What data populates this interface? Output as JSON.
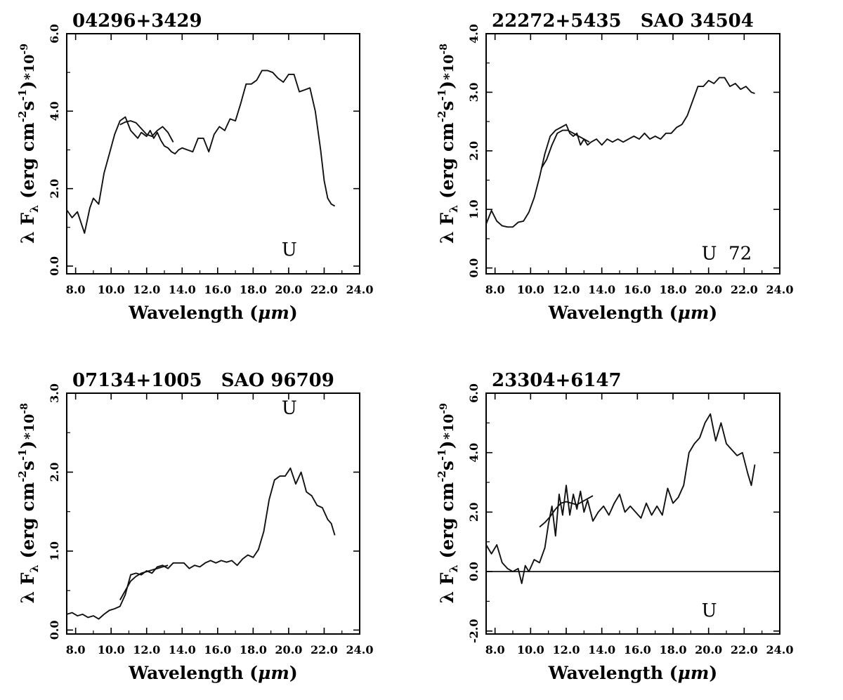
{
  "chart_data": [
    {
      "type": "line",
      "title": "04296+3429",
      "xlabel_pre": "Wavelength (",
      "xlabel_mu": "μm",
      "xlabel_post": ")",
      "ylabel_pre": "λ F",
      "ylabel_sub": "λ",
      "ylabel_mid": " (erg cm",
      "ylabel_exp1": "-2",
      "ylabel_mid2": "s",
      "ylabel_exp2": "-1",
      "ylabel_post": ")",
      "scale_base": "*10",
      "scale_exp": "-9",
      "xlim": [
        7.5,
        24.0
      ],
      "ylim": [
        -0.2,
        6.0
      ],
      "xticks": [
        "8.0",
        "10.0",
        "12.0",
        "14.0",
        "16.0",
        "18.0",
        "20.0",
        "22.0",
        "24.0"
      ],
      "yticks": [
        "0.0",
        "2.0",
        "4.0",
        "6.0"
      ],
      "marker": {
        "text": "U",
        "x": 20.0,
        "y": 0.2
      },
      "zero_line": false,
      "series": [
        {
          "x": [
            7.5,
            7.8,
            8.1,
            8.5,
            8.8,
            9.0,
            9.3,
            9.6,
            9.9,
            10.2,
            10.5,
            10.8,
            11.1,
            11.4,
            11.5,
            11.7,
            12.0,
            12.2,
            12.4,
            12.6,
            12.8,
            13.0,
            13.2,
            13.4,
            13.6,
            13.8,
            14.0,
            14.3,
            14.6,
            14.9,
            15.2,
            15.5,
            15.8,
            16.1,
            16.4,
            16.7,
            17.0,
            17.3,
            17.6,
            17.9,
            18.2,
            18.5,
            18.8,
            19.1,
            19.4,
            19.7,
            20.0,
            20.3,
            20.6,
            20.9,
            21.2,
            21.5,
            21.8,
            22.0,
            22.2,
            22.4,
            22.6
          ],
          "y": [
            1.45,
            1.25,
            1.4,
            0.85,
            1.5,
            1.75,
            1.6,
            2.4,
            2.9,
            3.4,
            3.75,
            3.85,
            3.5,
            3.35,
            3.3,
            3.45,
            3.35,
            3.5,
            3.3,
            3.45,
            3.25,
            3.1,
            3.05,
            2.95,
            2.9,
            3.0,
            3.05,
            3.0,
            2.95,
            3.3,
            3.3,
            2.95,
            3.4,
            3.6,
            3.5,
            3.8,
            3.75,
            4.2,
            4.7,
            4.7,
            4.8,
            5.05,
            5.05,
            5.0,
            4.85,
            4.75,
            4.95,
            4.95,
            4.5,
            4.55,
            4.6,
            4.0,
            3.0,
            2.2,
            1.75,
            1.6,
            1.55
          ]
        },
        {
          "x": [
            10.5,
            10.8,
            11.1,
            11.4,
            11.7,
            12.0,
            12.3,
            12.6,
            12.9,
            13.2,
            13.5
          ],
          "y": [
            3.65,
            3.72,
            3.75,
            3.7,
            3.55,
            3.4,
            3.35,
            3.5,
            3.6,
            3.45,
            3.2
          ]
        }
      ]
    },
    {
      "type": "line",
      "title": "22272+5435   SAO 34504",
      "xlabel_pre": "Wavelength (",
      "xlabel_mu": "μm",
      "xlabel_post": ")",
      "ylabel_pre": "λ F",
      "ylabel_sub": "λ",
      "ylabel_mid": " (erg cm",
      "ylabel_exp1": "-2",
      "ylabel_mid2": "s",
      "ylabel_exp2": "-1",
      "ylabel_post": ")",
      "scale_base": "*10",
      "scale_exp": "-8",
      "xlim": [
        7.5,
        24.0
      ],
      "ylim": [
        -0.1,
        4.0
      ],
      "xticks": [
        "8.0",
        "10.0",
        "12.0",
        "14.0",
        "16.0",
        "18.0",
        "20.0",
        "22.0",
        "24.0"
      ],
      "yticks": [
        "0.0",
        "1.0",
        "2.0",
        "3.0",
        "4.0"
      ],
      "marker": {
        "text": "U  72",
        "x": 20.0,
        "y": 0.1
      },
      "zero_line": false,
      "series": [
        {
          "x": [
            7.5,
            7.8,
            8.1,
            8.4,
            8.7,
            9.0,
            9.3,
            9.6,
            9.9,
            10.2,
            10.5,
            10.8,
            11.1,
            11.4,
            11.7,
            12.0,
            12.2,
            12.4,
            12.6,
            12.8,
            13.0,
            13.2,
            13.4,
            13.7,
            14.0,
            14.3,
            14.6,
            14.9,
            15.2,
            15.5,
            15.8,
            16.1,
            16.4,
            16.7,
            17.0,
            17.3,
            17.6,
            17.9,
            18.2,
            18.5,
            18.8,
            19.1,
            19.4,
            19.7,
            20.0,
            20.3,
            20.6,
            20.9,
            21.2,
            21.5,
            21.8,
            22.1,
            22.4,
            22.6
          ],
          "y": [
            0.75,
            0.98,
            0.8,
            0.72,
            0.7,
            0.7,
            0.78,
            0.8,
            0.95,
            1.2,
            1.55,
            1.95,
            2.25,
            2.35,
            2.4,
            2.45,
            2.3,
            2.25,
            2.3,
            2.1,
            2.2,
            2.1,
            2.15,
            2.2,
            2.1,
            2.2,
            2.15,
            2.2,
            2.15,
            2.2,
            2.25,
            2.2,
            2.3,
            2.2,
            2.25,
            2.2,
            2.3,
            2.3,
            2.4,
            2.45,
            2.6,
            2.85,
            3.1,
            3.1,
            3.2,
            3.15,
            3.25,
            3.25,
            3.1,
            3.15,
            3.05,
            3.1,
            3.0,
            2.98
          ]
        },
        {
          "x": [
            10.6,
            10.9,
            11.2,
            11.5,
            11.8,
            12.1,
            12.4,
            12.7,
            13.0,
            13.3
          ],
          "y": [
            1.7,
            1.85,
            2.1,
            2.3,
            2.35,
            2.35,
            2.3,
            2.25,
            2.2,
            2.15
          ]
        }
      ]
    },
    {
      "type": "line",
      "title": "07134+1005   SAO 96709",
      "xlabel_pre": "Wavelength (",
      "xlabel_mu": "μm",
      "xlabel_post": ")",
      "ylabel_pre": "λ F",
      "ylabel_sub": "λ",
      "ylabel_mid": " (erg cm",
      "ylabel_exp1": "-2",
      "ylabel_mid2": "s",
      "ylabel_exp2": "-1",
      "ylabel_post": ")",
      "scale_base": "*10",
      "scale_exp": "-8",
      "xlim": [
        7.5,
        24.0
      ],
      "ylim": [
        -0.05,
        3.0
      ],
      "xticks": [
        "8.0",
        "10.0",
        "12.0",
        "14.0",
        "16.0",
        "18.0",
        "20.0",
        "22.0",
        "24.0"
      ],
      "yticks": [
        "0.0",
        "1.0",
        "2.0",
        "3.0"
      ],
      "marker": {
        "text": "U",
        "x": 20.0,
        "y": 2.7
      },
      "zero_line": false,
      "series": [
        {
          "x": [
            7.5,
            7.8,
            8.1,
            8.4,
            8.7,
            9.0,
            9.3,
            9.6,
            9.9,
            10.2,
            10.5,
            10.8,
            11.1,
            11.4,
            11.7,
            12.0,
            12.3,
            12.6,
            12.9,
            13.2,
            13.5,
            13.8,
            14.1,
            14.4,
            14.7,
            15.0,
            15.3,
            15.6,
            15.9,
            16.2,
            16.5,
            16.8,
            17.1,
            17.4,
            17.7,
            18.0,
            18.3,
            18.6,
            18.9,
            19.2,
            19.5,
            19.8,
            20.1,
            20.4,
            20.7,
            21.0,
            21.3,
            21.6,
            21.9,
            22.2,
            22.4,
            22.6
          ],
          "y": [
            0.2,
            0.22,
            0.18,
            0.2,
            0.16,
            0.18,
            0.14,
            0.2,
            0.25,
            0.27,
            0.3,
            0.45,
            0.7,
            0.72,
            0.7,
            0.75,
            0.72,
            0.8,
            0.82,
            0.78,
            0.85,
            0.85,
            0.85,
            0.78,
            0.82,
            0.8,
            0.85,
            0.88,
            0.85,
            0.88,
            0.86,
            0.88,
            0.82,
            0.9,
            0.95,
            0.92,
            1.02,
            1.25,
            1.65,
            1.9,
            1.95,
            1.95,
            2.05,
            1.85,
            2.0,
            1.75,
            1.7,
            1.58,
            1.55,
            1.4,
            1.35,
            1.2
          ]
        },
        {
          "x": [
            10.5,
            10.8,
            11.1,
            11.4,
            11.7,
            12.0,
            12.3,
            12.6,
            12.9,
            13.2
          ],
          "y": [
            0.38,
            0.5,
            0.62,
            0.68,
            0.72,
            0.74,
            0.76,
            0.78,
            0.8,
            0.82
          ]
        }
      ]
    },
    {
      "type": "line",
      "title": "23304+6147",
      "xlabel_pre": "Wavelength (",
      "xlabel_mu": "μm",
      "xlabel_post": ")",
      "ylabel_pre": "λ F",
      "ylabel_sub": "λ",
      "ylabel_mid": " (erg cm",
      "ylabel_exp1": "-2",
      "ylabel_mid2": "s",
      "ylabel_exp2": "-1",
      "ylabel_post": ")",
      "scale_base": "*10",
      "scale_exp": "-9",
      "xlim": [
        7.5,
        24.0
      ],
      "ylim": [
        -2.1,
        6.0
      ],
      "xticks": [
        "8.0",
        "10.0",
        "12.0",
        "14.0",
        "16.0",
        "18.0",
        "20.0",
        "22.0",
        "24.0"
      ],
      "yticks": [
        "-2.0",
        "0.0",
        "2.0",
        "4.0",
        "6.0"
      ],
      "marker": {
        "text": "U",
        "x": 20.0,
        "y": -1.6
      },
      "zero_line": true,
      "series": [
        {
          "x": [
            7.5,
            7.8,
            8.1,
            8.4,
            8.7,
            9.0,
            9.3,
            9.5,
            9.7,
            9.9,
            10.2,
            10.5,
            10.8,
            11.0,
            11.2,
            11.4,
            11.6,
            11.8,
            12.0,
            12.2,
            12.4,
            12.6,
            12.8,
            13.0,
            13.2,
            13.5,
            13.8,
            14.1,
            14.4,
            14.7,
            15.0,
            15.3,
            15.6,
            15.9,
            16.2,
            16.5,
            16.8,
            17.1,
            17.4,
            17.7,
            18.0,
            18.3,
            18.6,
            18.9,
            19.2,
            19.5,
            19.8,
            20.1,
            20.4,
            20.7,
            21.0,
            21.3,
            21.6,
            21.9,
            22.2,
            22.4,
            22.6
          ],
          "y": [
            0.9,
            0.6,
            0.9,
            0.3,
            0.1,
            0.0,
            0.1,
            -0.4,
            0.2,
            0.0,
            0.4,
            0.3,
            0.8,
            1.6,
            2.2,
            1.2,
            2.6,
            1.9,
            2.9,
            1.9,
            2.6,
            2.1,
            2.7,
            2.0,
            2.4,
            1.7,
            2.0,
            2.2,
            1.9,
            2.3,
            2.6,
            2.0,
            2.2,
            2.0,
            1.8,
            2.3,
            1.9,
            2.2,
            1.9,
            2.8,
            2.3,
            2.5,
            2.9,
            4.0,
            4.3,
            4.5,
            5.0,
            5.3,
            4.4,
            5.0,
            4.3,
            4.1,
            3.9,
            4.0,
            3.3,
            2.9,
            3.6
          ]
        },
        {
          "x": [
            10.5,
            10.8,
            11.1,
            11.4,
            11.7,
            12.0,
            12.3,
            12.6,
            12.9,
            13.2,
            13.5
          ],
          "y": [
            1.5,
            1.65,
            1.85,
            2.1,
            2.3,
            2.35,
            2.3,
            2.25,
            2.35,
            2.45,
            2.55
          ]
        }
      ]
    }
  ]
}
